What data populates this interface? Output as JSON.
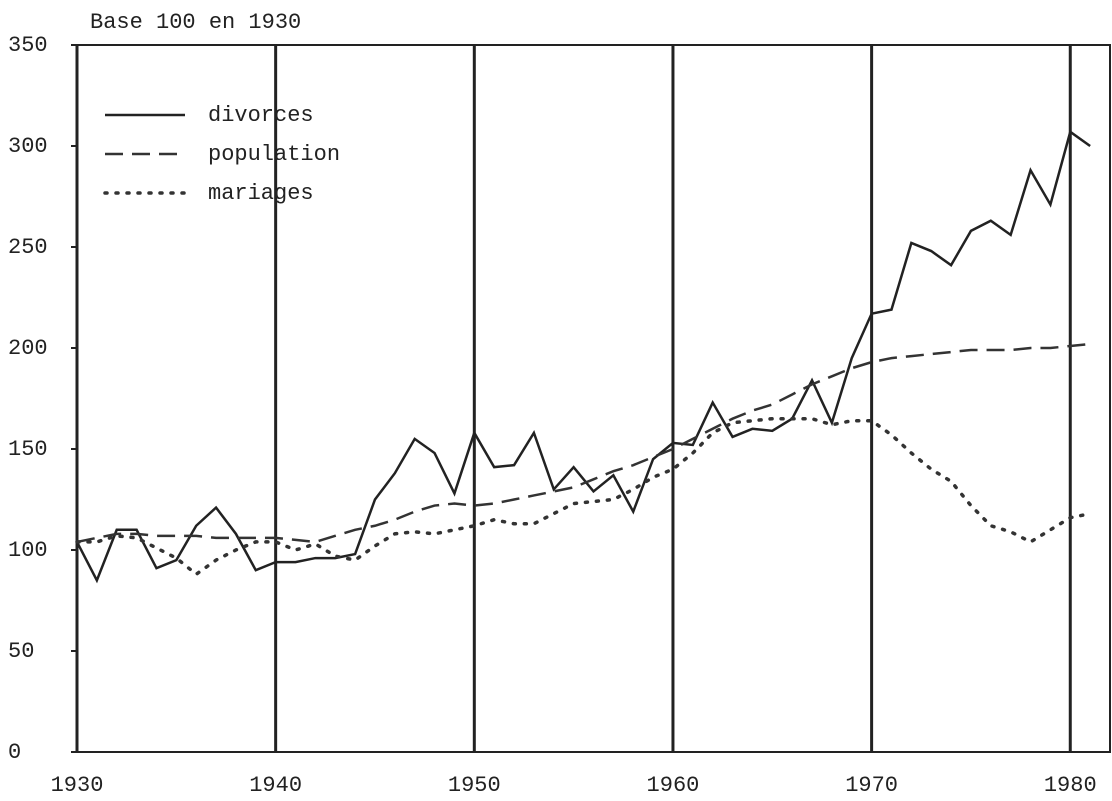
{
  "chart_data": {
    "type": "line",
    "title": "Base 100 en 1930",
    "x": [
      1930,
      1931,
      1932,
      1933,
      1934,
      1935,
      1936,
      1937,
      1938,
      1939,
      1940,
      1941,
      1942,
      1943,
      1944,
      1945,
      1946,
      1947,
      1948,
      1949,
      1950,
      1951,
      1952,
      1953,
      1954,
      1955,
      1956,
      1957,
      1958,
      1959,
      1960,
      1961,
      1962,
      1963,
      1964,
      1965,
      1966,
      1967,
      1968,
      1969,
      1970,
      1971,
      1972,
      1973,
      1974,
      1975,
      1976,
      1977,
      1978,
      1979,
      1980,
      1981
    ],
    "series": [
      {
        "name": "divorces",
        "color": "#222222",
        "dash": "solid",
        "values": [
          104,
          85,
          110,
          110,
          91,
          95,
          112,
          121,
          108,
          90,
          94,
          94,
          96,
          96,
          98,
          125,
          138,
          155,
          148,
          128,
          158,
          141,
          142,
          158,
          130,
          141,
          129,
          137,
          119,
          145,
          153,
          152,
          173,
          156,
          160,
          159,
          165,
          184,
          163,
          195,
          217,
          219,
          252,
          248,
          241,
          258,
          263,
          256,
          288,
          271,
          307,
          300
        ]
      },
      {
        "name": "population",
        "color": "#333333",
        "dash": "dashed",
        "values": [
          104,
          106,
          108,
          108,
          107,
          107,
          107,
          106,
          106,
          106,
          106,
          105,
          104,
          107,
          110,
          112,
          115,
          119,
          122,
          123,
          122,
          123,
          125,
          127,
          129,
          131,
          135,
          139,
          142,
          146,
          150,
          155,
          160,
          165,
          169,
          172,
          177,
          182,
          186,
          190,
          193,
          195,
          196,
          197,
          198,
          199,
          199,
          199,
          200,
          200,
          201,
          202
        ]
      },
      {
        "name": "mariages",
        "color": "#333333",
        "dash": "dotted",
        "values": [
          104,
          104,
          107,
          106,
          101,
          96,
          88,
          95,
          100,
          104,
          104,
          100,
          103,
          97,
          95,
          102,
          108,
          109,
          108,
          110,
          112,
          115,
          113,
          113,
          118,
          123,
          124,
          125,
          130,
          136,
          140,
          148,
          158,
          163,
          164,
          165,
          165,
          165,
          162,
          164,
          164,
          157,
          148,
          140,
          134,
          122,
          112,
          109,
          104,
          110,
          116,
          118
        ]
      }
    ],
    "xlim": [
      1930,
      1982
    ],
    "xticks": [
      1930,
      1940,
      1950,
      1960,
      1970,
      1980
    ],
    "ylim": [
      0,
      350
    ],
    "yticks": [
      0,
      50,
      100,
      150,
      200,
      250,
      300,
      350
    ],
    "grid": "x",
    "legend": "upper left"
  }
}
